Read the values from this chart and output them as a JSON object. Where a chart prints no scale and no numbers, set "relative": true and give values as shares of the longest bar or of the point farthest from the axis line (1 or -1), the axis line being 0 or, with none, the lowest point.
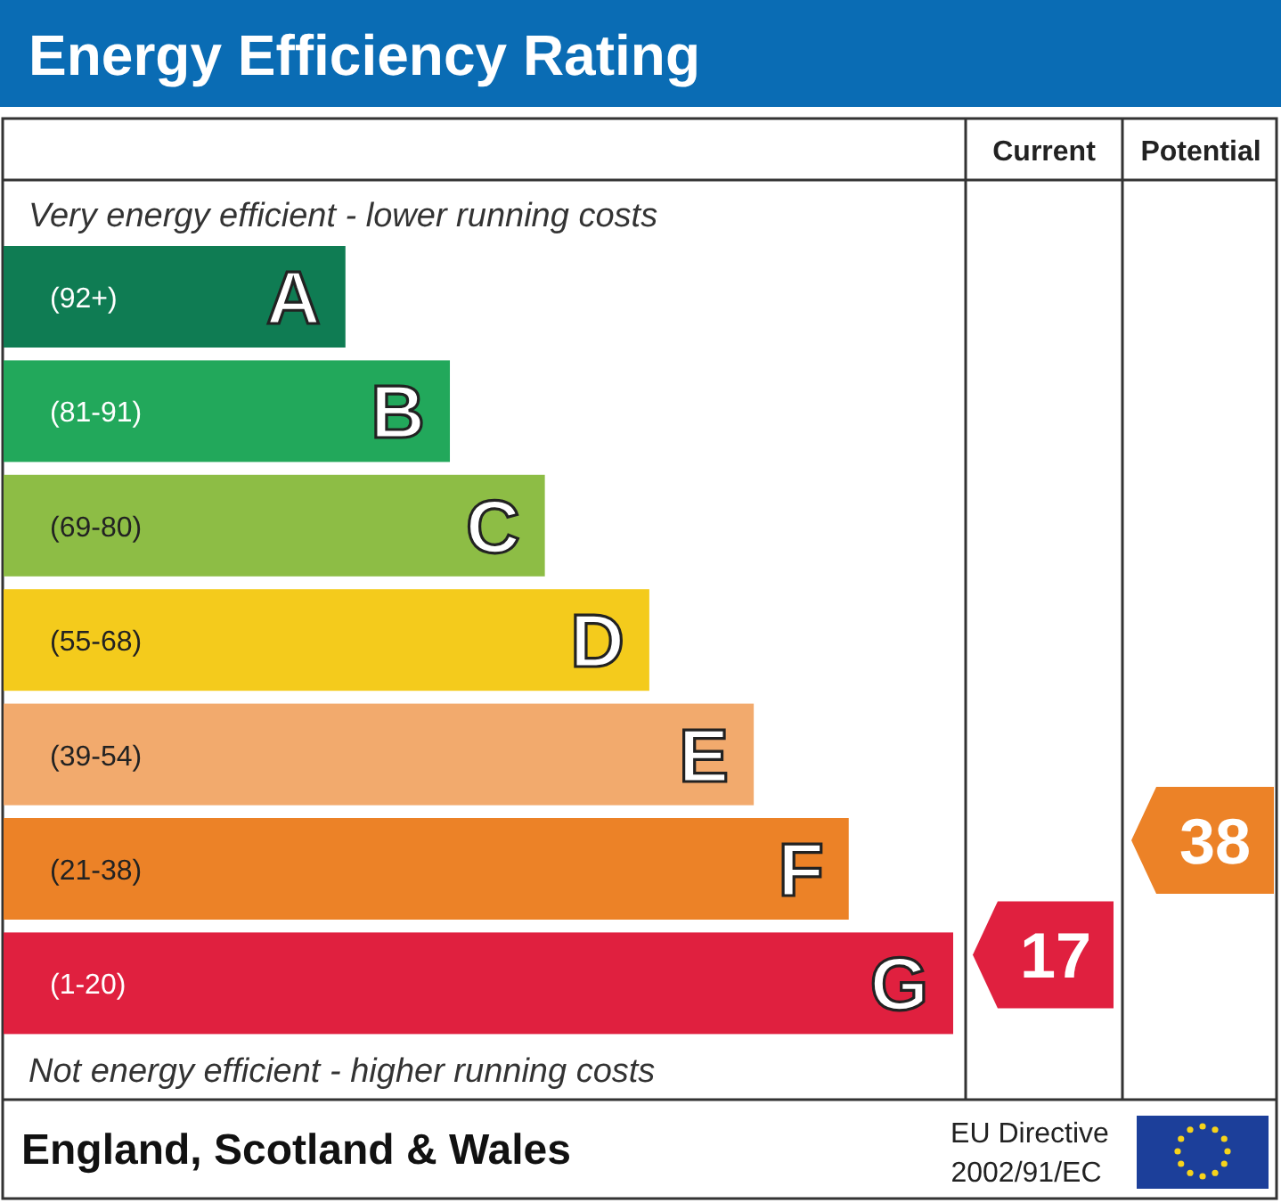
{
  "chart_data": {
    "type": "bar",
    "orientation": "horizontal",
    "relative": true,
    "title": "Energy Efficiency Rating",
    "categories": [
      "A",
      "B",
      "C",
      "D",
      "E",
      "F",
      "G"
    ],
    "values": [
      0.36,
      0.47,
      0.57,
      0.68,
      0.79,
      0.89,
      1
    ],
    "colors": [
      "#0f7c53",
      "#22a85b",
      "#8dbd45",
      "#f4cb1c",
      "#f2aa6d",
      "#ec8227",
      "#e0203f"
    ],
    "annotations": [
      "(92+)",
      "(81-91)",
      "(69-80)",
      "(55-68)",
      "(39-54)",
      "(21-38)",
      "(1-20)",
      "Current",
      "Potential",
      "17",
      "38",
      "Very energy efficient - lower running costs",
      "Not energy efficient - higher running costs",
      "England, Scotland & Wales",
      "EU Directive",
      "2002/91/EC"
    ]
  }
}
